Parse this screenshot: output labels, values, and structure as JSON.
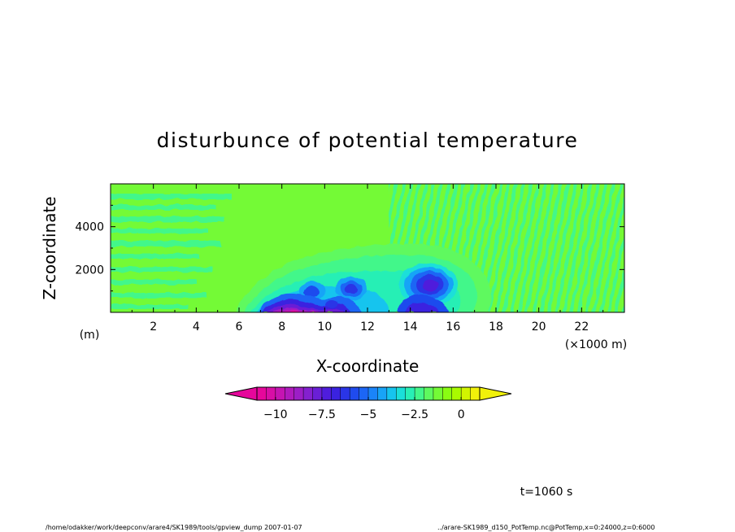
{
  "chart_data": {
    "type": "heatmap",
    "title": "disturbunce of potential temperature",
    "xlabel": "X-coordinate",
    "ylabel": "Z-coordinate",
    "x_unit_label": "(×1000 m)",
    "y_unit_label": "(m)",
    "xlim": [
      0,
      24
    ],
    "ylim": [
      0,
      6000
    ],
    "x_ticks": [
      2,
      4,
      6,
      8,
      10,
      12,
      14,
      16,
      18,
      20,
      22
    ],
    "x_tick_labels": [
      "2",
      "4",
      "6",
      "8",
      "10",
      "12",
      "14",
      "16",
      "18",
      "20",
      "22"
    ],
    "y_ticks": [
      2000,
      4000
    ],
    "y_tick_labels": [
      "2000",
      "4000"
    ],
    "colorbar": {
      "min": -11,
      "max": 1,
      "levels": 24,
      "ticks": [
        -10,
        -7.5,
        -5,
        -2.5,
        0
      ],
      "tick_labels": [
        "−10",
        "−7.5",
        "−5",
        "−2.5",
        "0"
      ],
      "colors": [
        "#e6079b",
        "#d80ea6",
        "#c514b2",
        "#b01abd",
        "#9c1ec6",
        "#8420cf",
        "#6a1fd6",
        "#4f1ddc",
        "#3a22e0",
        "#2a35e6",
        "#1f4bee",
        "#1c66f5",
        "#1a84f9",
        "#18a4f7",
        "#16c4ee",
        "#1adfd9",
        "#28efb5",
        "#43f78a",
        "#5ef95e",
        "#74fa36",
        "#8afc12",
        "#a9fb00",
        "#d2f500",
        "#f1f10a"
      ]
    },
    "features": [
      {
        "name": "cold pool",
        "x_range": [
          6.3,
          12.3
        ],
        "z_range": [
          0,
          700
        ],
        "min_value": -10.5
      },
      {
        "name": "vortex",
        "x_center": 11.3,
        "z_center": 1150,
        "min_value": -4
      },
      {
        "name": "vortex",
        "x_center": 15.0,
        "z_center": 1350,
        "min_value": -4.5
      },
      {
        "name": "vortex",
        "x_center": 9.3,
        "z_center": 1000,
        "min_value": -3
      }
    ]
  },
  "annotations": {
    "time": "t=1060 s",
    "footer_left": "/home/odakker/work/deepconv/arare4/SK1989/tools/gpview_dump  2007-01-07",
    "footer_right": "../arare-SK1989_d150_PotTemp.nc@PotTemp,x=0:24000,z=0:6000"
  }
}
